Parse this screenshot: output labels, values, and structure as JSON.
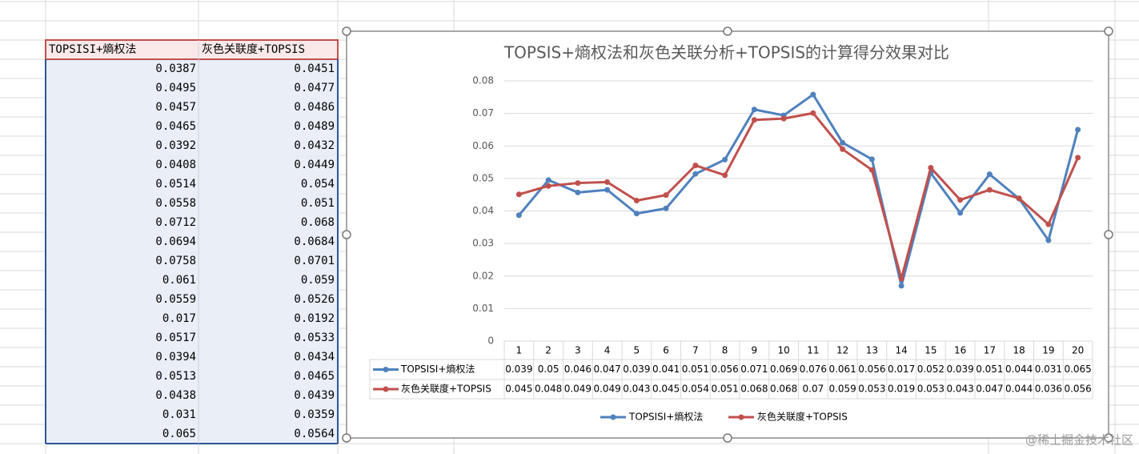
{
  "spreadsheet": {
    "headers": [
      "TOPSISI+熵权法",
      "灰色关联度+TOPSIS"
    ],
    "rows": [
      [
        "0.0387",
        "0.0451"
      ],
      [
        "0.0495",
        "0.0477"
      ],
      [
        "0.0457",
        "0.0486"
      ],
      [
        "0.0465",
        "0.0489"
      ],
      [
        "0.0392",
        "0.0432"
      ],
      [
        "0.0408",
        "0.0449"
      ],
      [
        "0.0514",
        "0.054"
      ],
      [
        "0.0558",
        "0.051"
      ],
      [
        "0.0712",
        "0.068"
      ],
      [
        "0.0694",
        "0.0684"
      ],
      [
        "0.0758",
        "0.0701"
      ],
      [
        "0.061",
        "0.059"
      ],
      [
        "0.0559",
        "0.0526"
      ],
      [
        "0.017",
        "0.0192"
      ],
      [
        "0.0517",
        "0.0533"
      ],
      [
        "0.0394",
        "0.0434"
      ],
      [
        "0.0513",
        "0.0465"
      ],
      [
        "0.0438",
        "0.0439"
      ],
      [
        "0.031",
        "0.0359"
      ],
      [
        "0.065",
        "0.0564"
      ]
    ]
  },
  "chart_data": {
    "type": "line",
    "title": "TOPSIS+熵权法和灰色关联分析+TOPSIS的计算得分效果对比",
    "categories": [
      "1",
      "2",
      "3",
      "4",
      "5",
      "6",
      "7",
      "8",
      "9",
      "10",
      "11",
      "12",
      "13",
      "14",
      "15",
      "16",
      "17",
      "18",
      "19",
      "20"
    ],
    "series": [
      {
        "name": "TOPSISI+熵权法",
        "color": "#4f81bd",
        "values": [
          0.0387,
          0.0495,
          0.0457,
          0.0465,
          0.0392,
          0.0408,
          0.0514,
          0.0558,
          0.0712,
          0.0694,
          0.0758,
          0.061,
          0.0559,
          0.017,
          0.0517,
          0.0394,
          0.0513,
          0.0438,
          0.031,
          0.065
        ],
        "value_labels": [
          "0.039",
          "0.05",
          "0.046",
          "0.047",
          "0.039",
          "0.041",
          "0.051",
          "0.056",
          "0.071",
          "0.069",
          "0.076",
          "0.061",
          "0.056",
          "0.017",
          "0.052",
          "0.039",
          "0.051",
          "0.044",
          "0.031",
          "0.065"
        ]
      },
      {
        "name": "灰色关联度+TOPSIS",
        "color": "#c0504d",
        "values": [
          0.0451,
          0.0477,
          0.0486,
          0.0489,
          0.0432,
          0.0449,
          0.054,
          0.051,
          0.068,
          0.0684,
          0.0701,
          0.059,
          0.0526,
          0.0192,
          0.0533,
          0.0434,
          0.0465,
          0.0439,
          0.0359,
          0.0564
        ],
        "value_labels": [
          "0.045",
          "0.048",
          "0.049",
          "0.049",
          "0.043",
          "0.045",
          "0.054",
          "0.051",
          "0.068",
          "0.068",
          "0.07",
          "0.059",
          "0.053",
          "0.019",
          "0.053",
          "0.043",
          "0.047",
          "0.044",
          "0.036",
          "0.056"
        ]
      }
    ],
    "ylim": [
      0,
      0.08
    ],
    "yticks": [
      0,
      0.01,
      0.02,
      0.03,
      0.04,
      0.05,
      0.06,
      0.07,
      0.08
    ],
    "grid": true
  },
  "watermark": "@稀土掘金技术社区"
}
